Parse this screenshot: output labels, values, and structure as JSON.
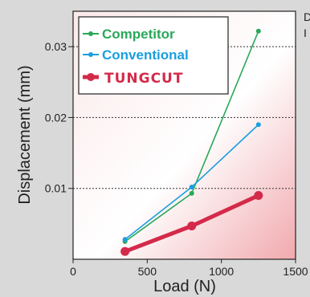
{
  "side_note": {
    "line1": "D",
    "line2": "I"
  },
  "chart_data": {
    "type": "line",
    "xlabel": "Load (N)",
    "ylabel": "Displacement (mm)",
    "xlim": [
      0,
      1500
    ],
    "ylim": [
      0,
      0.035
    ],
    "xticks": [
      0,
      500,
      1000,
      1500
    ],
    "xtick_labels": [
      "0",
      "500",
      "1000",
      "1500"
    ],
    "yticks": [
      0.01,
      0.02,
      0.03
    ],
    "ytick_labels": [
      "0.01",
      "0.02",
      "0.03"
    ],
    "grid": "horizontal dashed",
    "legend_position": "top-left",
    "series": [
      {
        "name": "Competitor",
        "color": "#2aa85a",
        "x": [
          350,
          800,
          1250
        ],
        "y": [
          0.0025,
          0.0093,
          0.0322
        ]
      },
      {
        "name": "Conventional",
        "color": "#1a9fe0",
        "x": [
          350,
          800,
          1250
        ],
        "y": [
          0.0028,
          0.0102,
          0.019
        ]
      },
      {
        "name": "TUNGCUT",
        "color": "#d42a4a",
        "x": [
          350,
          800,
          1250
        ],
        "y": [
          0.0011,
          0.0047,
          0.009
        ]
      }
    ]
  }
}
